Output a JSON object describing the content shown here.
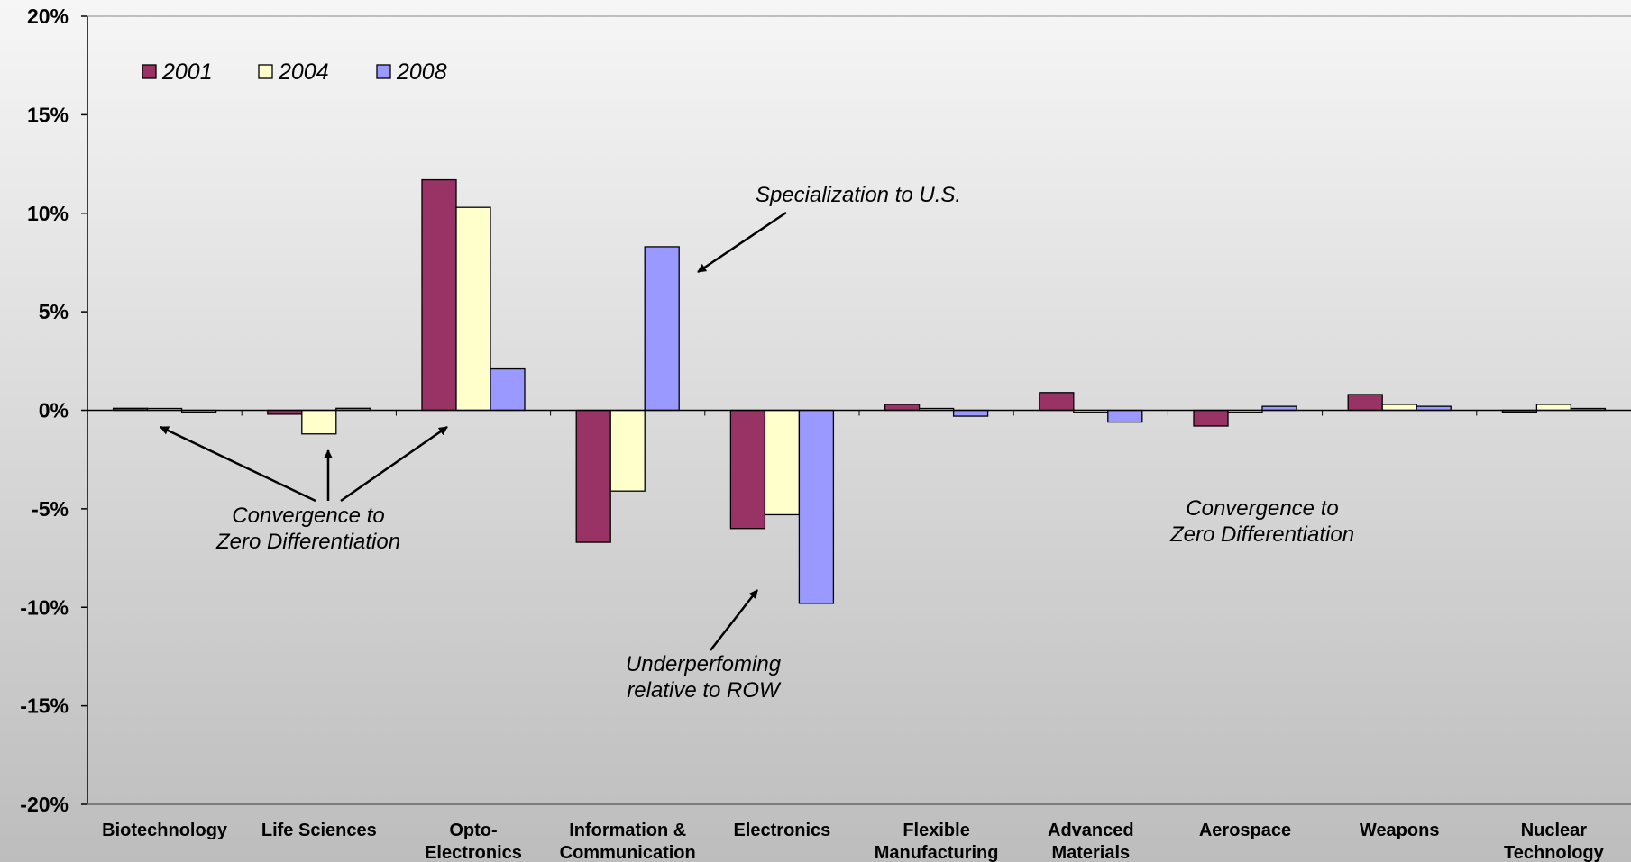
{
  "chart_data": {
    "type": "bar",
    "categories": [
      [
        "Biotechnology"
      ],
      [
        "Life Sciences"
      ],
      [
        "Opto-",
        "Electronics"
      ],
      [
        "Information &",
        "Communication"
      ],
      [
        "Electronics"
      ],
      [
        "Flexible",
        "Manufacturing"
      ],
      [
        "Advanced",
        "Materials"
      ],
      [
        "Aerospace"
      ],
      [
        "Weapons"
      ],
      [
        "Nuclear",
        "Technology"
      ]
    ],
    "series": [
      {
        "name": "2001",
        "color": "#993366",
        "values": [
          0.1,
          -0.2,
          11.7,
          -6.7,
          -6.0,
          0.3,
          0.9,
          -0.8,
          0.8,
          -0.1
        ]
      },
      {
        "name": "2004",
        "color": "#FFFFCC",
        "values": [
          0.0,
          -1.2,
          10.3,
          -4.1,
          -5.3,
          0.0,
          -0.1,
          -0.1,
          0.3,
          0.3
        ]
      },
      {
        "name": "2008",
        "color": "#9999FF",
        "values": [
          -0.1,
          0.1,
          2.1,
          8.3,
          -9.8,
          -0.3,
          -0.6,
          0.2,
          0.2,
          0.0
        ]
      }
    ],
    "ylim": [
      -20,
      20
    ],
    "yticks": [
      "-20%",
      "-15%",
      "-10%",
      "-5%",
      "0%",
      "5%",
      "10%",
      "15%",
      "20%"
    ],
    "legend_position": "top-left",
    "annotations": [
      {
        "lines": [
          "Specialization to U.S."
        ]
      },
      {
        "lines": [
          "Convergence to",
          "Zero Differentiation"
        ]
      },
      {
        "lines": [
          "Underperfoming",
          "relative to ROW"
        ]
      },
      {
        "lines": [
          "Convergence to",
          "Zero Differentiation"
        ]
      }
    ]
  }
}
